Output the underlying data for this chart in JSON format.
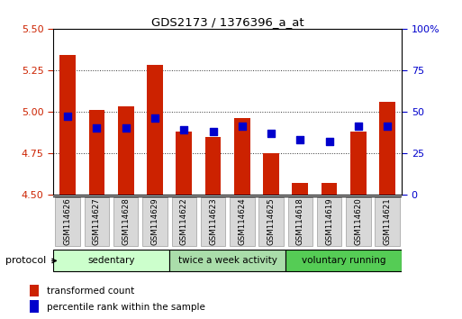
{
  "title": "GDS2173 / 1376396_a_at",
  "samples": [
    "GSM114626",
    "GSM114627",
    "GSM114628",
    "GSM114629",
    "GSM114622",
    "GSM114623",
    "GSM114624",
    "GSM114625",
    "GSM114618",
    "GSM114619",
    "GSM114620",
    "GSM114621"
  ],
  "transformed_count": [
    5.34,
    5.01,
    5.03,
    5.28,
    4.88,
    4.85,
    4.96,
    4.75,
    4.57,
    4.57,
    4.88,
    5.06
  ],
  "percentile_rank": [
    47,
    40,
    40,
    46,
    39,
    38,
    41,
    37,
    33,
    32,
    41,
    41
  ],
  "ylim_left": [
    4.5,
    5.5
  ],
  "ylim_right": [
    0,
    100
  ],
  "yticks_left": [
    4.5,
    4.75,
    5.0,
    5.25,
    5.5
  ],
  "yticks_right": [
    0,
    25,
    50,
    75,
    100
  ],
  "bar_color": "#cc2200",
  "dot_color": "#0000cc",
  "bar_bottom": 4.5,
  "groups": [
    {
      "label": "sedentary",
      "start": 0,
      "end": 3,
      "color": "#ccffcc"
    },
    {
      "label": "twice a week activity",
      "start": 4,
      "end": 7,
      "color": "#aaddaa"
    },
    {
      "label": "voluntary running",
      "start": 8,
      "end": 11,
      "color": "#55cc55"
    }
  ],
  "legend_items": [
    {
      "label": "transformed count",
      "color": "#cc2200"
    },
    {
      "label": "percentile rank within the sample",
      "color": "#0000cc"
    }
  ],
  "background_color": "#ffffff",
  "tick_label_color_left": "#cc2200",
  "tick_label_color_right": "#0000cc",
  "bar_width": 0.55,
  "dot_size": 40,
  "dot_marker": "s"
}
